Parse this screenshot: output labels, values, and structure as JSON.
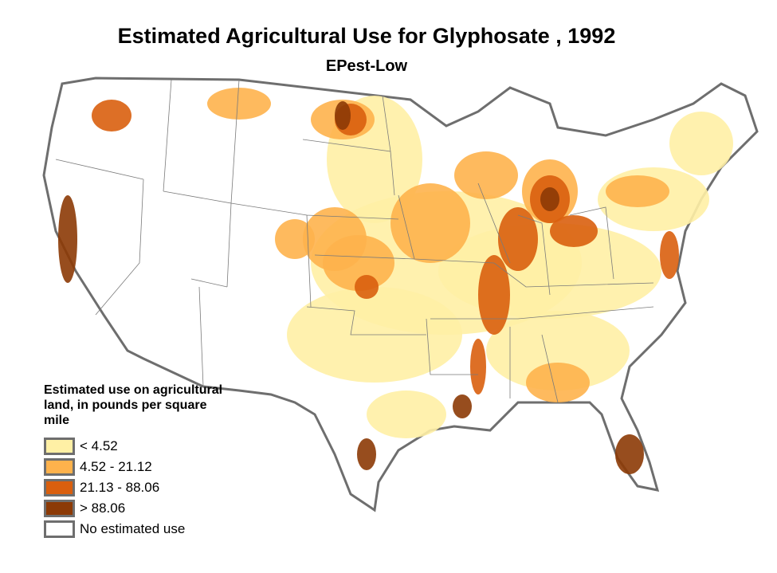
{
  "title": "Estimated Agricultural Use for Glyphosate , 1992",
  "subtitle": "EPest-Low",
  "legend": {
    "title": "Estimated use on agricultural land, in pounds per square mile",
    "items": [
      {
        "label": "< 4.52",
        "color": "#FFF0A5"
      },
      {
        "label": "4.52 - 21.12",
        "color": "#FEB24C"
      },
      {
        "label": "21.13 - 88.06",
        "color": "#D95F0E"
      },
      {
        "label": "> 88.06",
        "color": "#8C3A06"
      },
      {
        "label": "No estimated use",
        "color": "#FFFFFF"
      }
    ]
  }
}
